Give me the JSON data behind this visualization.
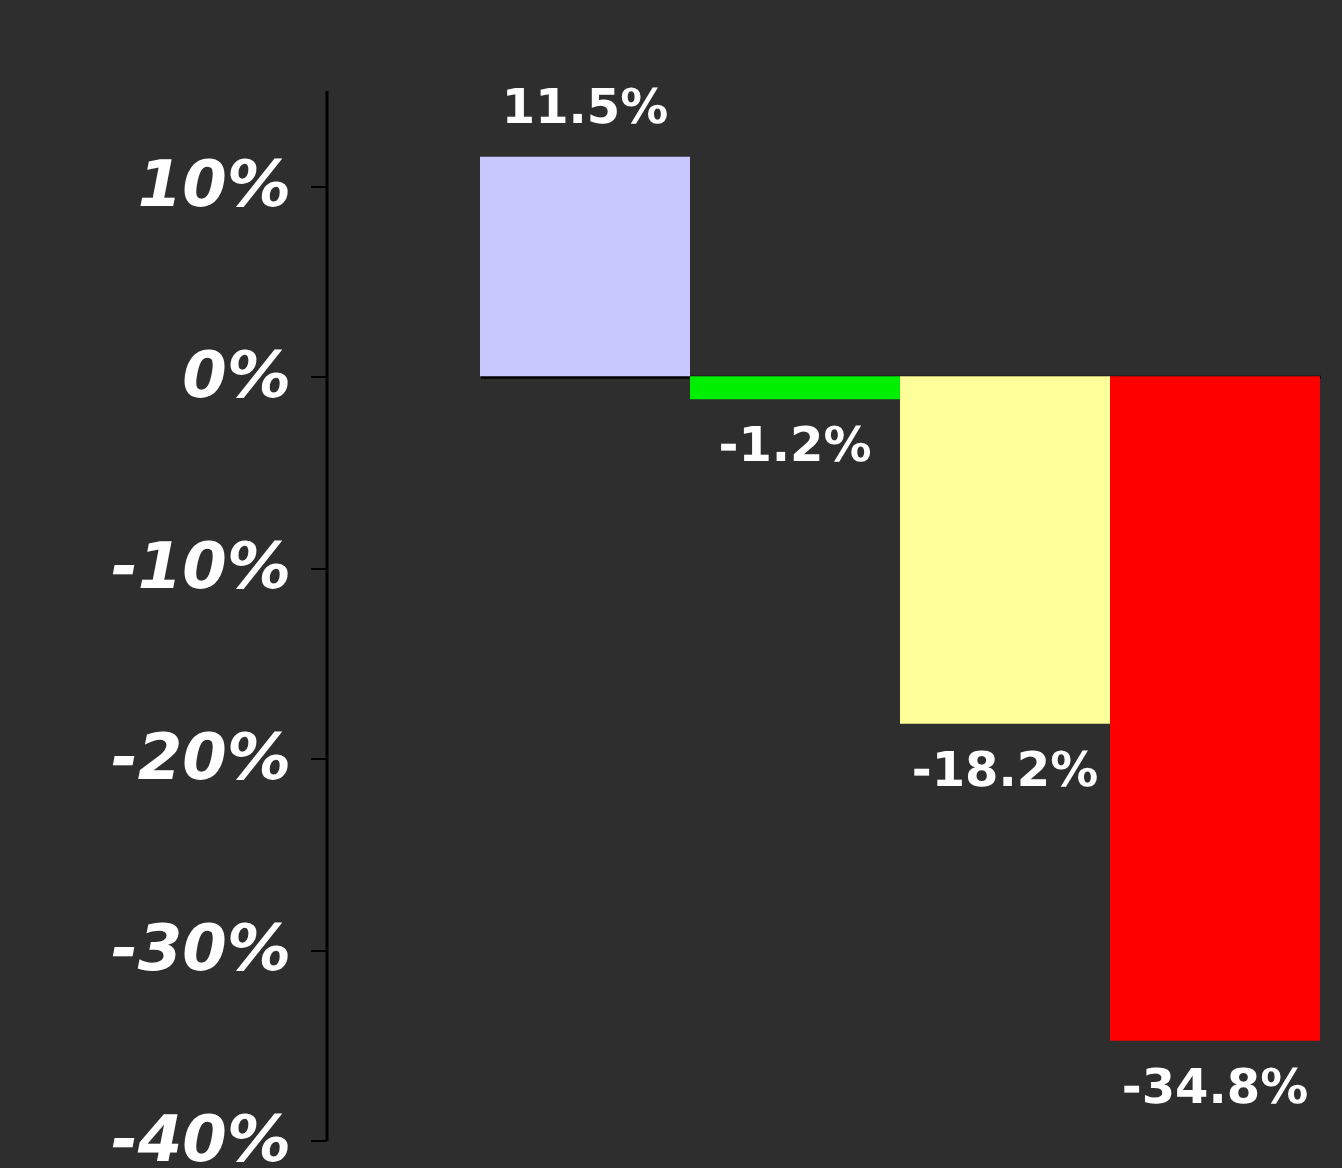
{
  "chart_data": {
    "type": "bar",
    "categories": [
      null,
      null,
      null,
      null
    ],
    "values": [
      11.5,
      -1.2,
      -18.2,
      -34.8
    ],
    "colors": [
      "#c8c8ff",
      "#00ee00",
      "#ffff99",
      "#ff0000"
    ],
    "value_labels": [
      "11.5%",
      "-1.2%",
      "-18.2%",
      "-34.8%"
    ],
    "ylim": [
      -40,
      15
    ],
    "yticks": [
      {
        "value": -40,
        "label": "-40%"
      },
      {
        "value": -30,
        "label": "-30%"
      },
      {
        "value": -20,
        "label": "-20%"
      },
      {
        "value": -10,
        "label": "-10%"
      },
      {
        "value": 0,
        "label": "0%"
      },
      {
        "value": 10,
        "label": "10%"
      }
    ]
  }
}
